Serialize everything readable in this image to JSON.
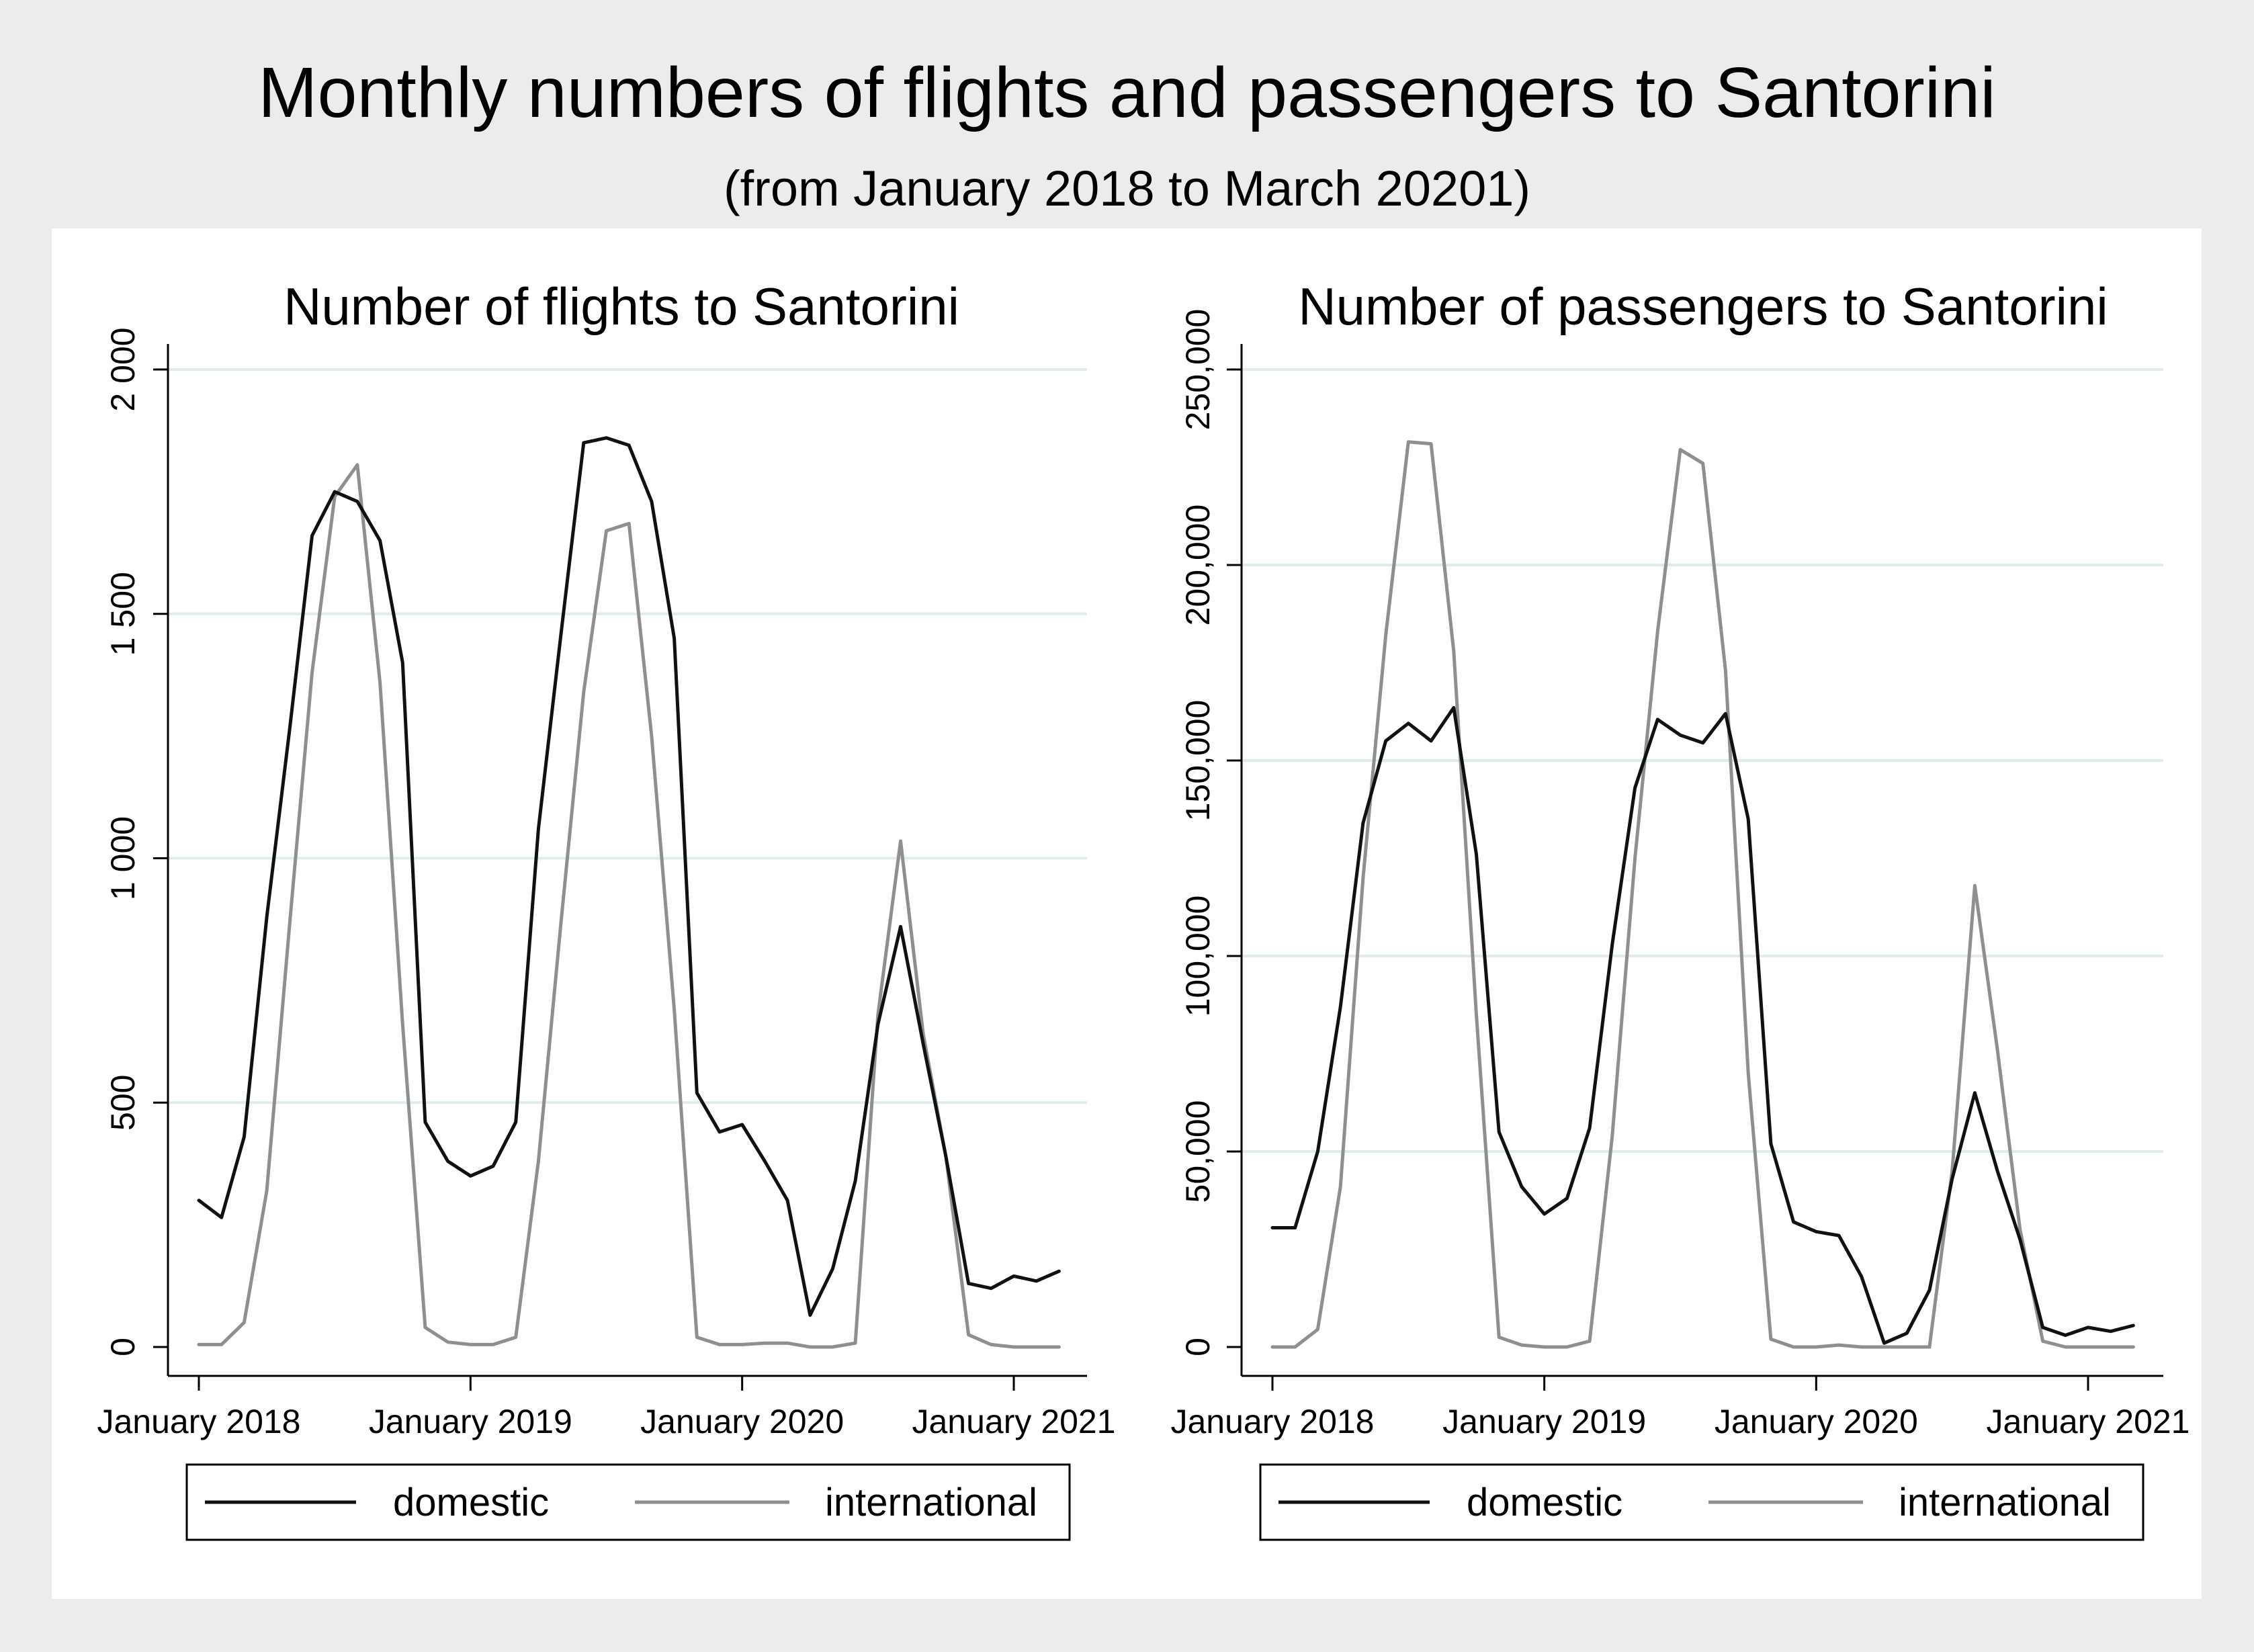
{
  "title": "Monthly numbers of flights and passengers to Santorini",
  "subtitle": "(from January 2018 to March 20201)",
  "colors": {
    "domestic": "#111111",
    "international": "#8f8f8f",
    "grid": "#e0ece8",
    "plot_bg": "#ffffff",
    "outer_bg": "#ececec"
  },
  "chart_data": [
    {
      "type": "line",
      "title": "Number of flights to Santorini",
      "xlabel": "",
      "ylabel": "",
      "xlim": [
        0,
        38
      ],
      "ylim": [
        0,
        2000
      ],
      "yticks": [
        0,
        500,
        1000,
        1500,
        2000
      ],
      "ytick_labels": [
        "0",
        "500",
        "1 000",
        "1 500",
        "2 000"
      ],
      "xticks": [
        0,
        12,
        24,
        36
      ],
      "xtick_labels": [
        "January 2018",
        "January 2019",
        "January 2020",
        "January 2021"
      ],
      "grid": true,
      "legend": [
        "domestic",
        "international"
      ],
      "series": [
        {
          "name": "domestic",
          "x": [
            0,
            1,
            2,
            3,
            4,
            5,
            6,
            7,
            8,
            9,
            10,
            11,
            12,
            13,
            14,
            15,
            16,
            17,
            18,
            19,
            20,
            21,
            22,
            23,
            24,
            25,
            26,
            27,
            28,
            29,
            30,
            31,
            32,
            33,
            34,
            35,
            36,
            37,
            38
          ],
          "values": [
            300,
            265,
            430,
            880,
            1260,
            1660,
            1750,
            1730,
            1650,
            1400,
            460,
            380,
            350,
            370,
            460,
            1060,
            1460,
            1850,
            1860,
            1845,
            1730,
            1450,
            520,
            440,
            455,
            380,
            300,
            65,
            160,
            340,
            660,
            860,
            620,
            390,
            130,
            120,
            145,
            135,
            155
          ]
        },
        {
          "name": "international",
          "x": [
            0,
            1,
            2,
            3,
            4,
            5,
            6,
            7,
            8,
            9,
            10,
            11,
            12,
            13,
            14,
            15,
            16,
            17,
            18,
            19,
            20,
            21,
            22,
            23,
            24,
            25,
            26,
            27,
            28,
            29,
            30,
            31,
            32,
            33,
            34,
            35,
            36,
            37,
            38
          ],
          "values": [
            5,
            5,
            50,
            320,
            860,
            1380,
            1740,
            1805,
            1360,
            660,
            40,
            10,
            5,
            5,
            20,
            380,
            870,
            1340,
            1670,
            1685,
            1250,
            690,
            20,
            5,
            5,
            8,
            8,
            0,
            0,
            8,
            680,
            1035,
            640,
            390,
            25,
            5,
            0,
            0,
            0
          ]
        }
      ]
    },
    {
      "type": "line",
      "title": "Number of passengers to Santorini",
      "xlabel": "",
      "ylabel": "",
      "xlim": [
        0,
        38
      ],
      "ylim": [
        0,
        250000
      ],
      "yticks": [
        0,
        50000,
        100000,
        150000,
        200000,
        250000
      ],
      "ytick_labels": [
        "0",
        "50,000",
        "100,000",
        "150,000",
        "200,000",
        "250,000"
      ],
      "xticks": [
        0,
        12,
        24,
        36
      ],
      "xtick_labels": [
        "January 2018",
        "January 2019",
        "January 2020",
        "January 2021"
      ],
      "grid": true,
      "legend": [
        "domestic",
        "international"
      ],
      "series": [
        {
          "name": "domestic",
          "x": [
            0,
            1,
            2,
            3,
            4,
            5,
            6,
            7,
            8,
            9,
            10,
            11,
            12,
            13,
            14,
            15,
            16,
            17,
            18,
            19,
            20,
            21,
            22,
            23,
            24,
            25,
            26,
            27,
            28,
            29,
            30,
            31,
            32,
            33,
            34,
            35,
            36,
            37,
            38
          ],
          "values": [
            30500,
            30500,
            50000,
            87000,
            134000,
            155000,
            159500,
            155000,
            163500,
            126000,
            55000,
            41000,
            34000,
            38000,
            56000,
            103000,
            143000,
            160500,
            156500,
            154500,
            162000,
            135000,
            52000,
            32000,
            29500,
            28500,
            18000,
            1000,
            3500,
            14500,
            43000,
            65000,
            45000,
            27500,
            5000,
            3000,
            5000,
            4000,
            5500
          ]
        },
        {
          "name": "international",
          "x": [
            0,
            1,
            2,
            3,
            4,
            5,
            6,
            7,
            8,
            9,
            10,
            11,
            12,
            13,
            14,
            15,
            16,
            17,
            18,
            19,
            20,
            21,
            22,
            23,
            24,
            25,
            26,
            27,
            28,
            29,
            30,
            31,
            32,
            33,
            34,
            35,
            36,
            37,
            38
          ],
          "values": [
            0,
            0,
            4500,
            41000,
            120000,
            182000,
            231500,
            231000,
            178000,
            85000,
            2500,
            500,
            0,
            0,
            1500,
            54000,
            125000,
            183000,
            229500,
            226000,
            173000,
            70000,
            2000,
            0,
            0,
            500,
            0,
            0,
            0,
            0,
            45000,
            118000,
            76000,
            30000,
            1500,
            0,
            0,
            0,
            0
          ]
        }
      ]
    }
  ]
}
